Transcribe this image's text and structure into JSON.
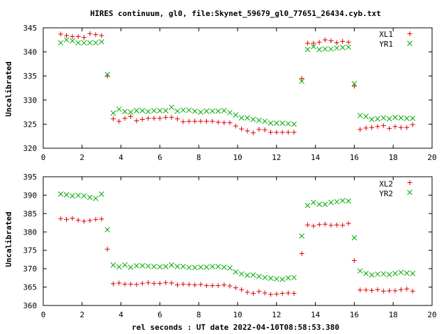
{
  "chart_data": {
    "type": "scatter",
    "title": "HIRES continuum, gl0, file:Skynet_59679_gl0_77651_26434.cyb.txt",
    "xlabel": "rel seconds : UT date 2022-04-10T08:58:53.380",
    "colors": {
      "red": "#dd0000",
      "green": "#00aa00"
    },
    "panels": [
      {
        "ylabel": "Uncalibrated",
        "xlim": [
          0,
          20
        ],
        "ylim": [
          320,
          345
        ],
        "xticks": [
          0,
          2,
          4,
          6,
          8,
          10,
          12,
          14,
          16,
          18,
          20
        ],
        "yticks": [
          320,
          325,
          330,
          335,
          340,
          345
        ],
        "legend_position": "top-right",
        "series": [
          {
            "name": "XL1",
            "marker": "plus",
            "color": "#dd0000",
            "x": [
              0.9,
              1.2,
              1.5,
              1.8,
              2.1,
              2.4,
              2.7,
              3.0,
              3.3,
              3.6,
              3.9,
              4.2,
              4.5,
              4.8,
              5.1,
              5.4,
              5.7,
              6.0,
              6.3,
              6.6,
              6.9,
              7.2,
              7.5,
              7.8,
              8.1,
              8.4,
              8.7,
              9.0,
              9.3,
              9.6,
              9.9,
              10.2,
              10.5,
              10.8,
              11.1,
              11.4,
              11.7,
              12.0,
              12.3,
              12.6,
              12.9,
              13.3,
              13.6,
              13.9,
              14.2,
              14.5,
              14.8,
              15.1,
              15.4,
              15.7,
              16.0,
              16.3,
              16.6,
              16.9,
              17.2,
              17.5,
              17.8,
              18.1,
              18.4,
              18.7,
              19.0
            ],
            "y": [
              343.7,
              343.4,
              343.2,
              343.2,
              343.0,
              343.8,
              343.6,
              343.4,
              335.0,
              326.1,
              325.6,
              326.2,
              326.6,
              325.7,
              326.0,
              326.2,
              326.2,
              326.2,
              326.4,
              326.4,
              326.1,
              325.5,
              325.6,
              325.6,
              325.6,
              325.6,
              325.6,
              325.4,
              325.3,
              325.3,
              324.6,
              324.0,
              323.6,
              323.2,
              323.9,
              323.8,
              323.3,
              323.3,
              323.3,
              323.3,
              323.3,
              334.5,
              341.8,
              341.8,
              342.0,
              342.5,
              342.3,
              341.9,
              342.2,
              342.0,
              332.9,
              323.9,
              324.2,
              324.3,
              324.5,
              324.7,
              324.1,
              324.5,
              324.3,
              324.3,
              324.9
            ]
          },
          {
            "name": "YR1",
            "marker": "cross",
            "color": "#00aa00",
            "x": [
              0.9,
              1.2,
              1.5,
              1.8,
              2.1,
              2.4,
              2.7,
              3.0,
              3.3,
              3.6,
              3.9,
              4.2,
              4.5,
              4.8,
              5.1,
              5.4,
              5.7,
              6.0,
              6.3,
              6.6,
              6.9,
              7.2,
              7.5,
              7.8,
              8.1,
              8.4,
              8.7,
              9.0,
              9.3,
              9.6,
              9.9,
              10.2,
              10.5,
              10.8,
              11.1,
              11.4,
              11.7,
              12.0,
              12.3,
              12.6,
              12.9,
              13.3,
              13.6,
              13.9,
              14.2,
              14.5,
              14.8,
              15.1,
              15.4,
              15.7,
              16.0,
              16.3,
              16.6,
              16.9,
              17.2,
              17.5,
              17.8,
              18.1,
              18.4,
              18.7,
              19.0
            ],
            "y": [
              341.9,
              342.5,
              342.3,
              341.9,
              341.9,
              341.9,
              341.9,
              342.1,
              335.3,
              327.3,
              328.1,
              327.6,
              327.5,
              327.8,
              327.8,
              327.6,
              327.8,
              327.8,
              327.8,
              328.5,
              327.7,
              327.9,
              327.9,
              327.7,
              327.5,
              327.7,
              327.7,
              327.7,
              327.8,
              327.4,
              326.9,
              326.3,
              326.3,
              326.0,
              325.8,
              325.6,
              325.2,
              325.2,
              325.2,
              325.1,
              325.0,
              333.9,
              340.5,
              341.1,
              340.5,
              340.6,
              340.6,
              340.8,
              340.9,
              341.0,
              333.4,
              326.8,
              326.6,
              326.0,
              326.1,
              326.3,
              326.1,
              326.4,
              326.3,
              326.2,
              326.2
            ]
          }
        ]
      },
      {
        "ylabel": "Uncalibrated",
        "xlim": [
          0,
          20
        ],
        "ylim": [
          360,
          395
        ],
        "xticks": [
          0,
          2,
          4,
          6,
          8,
          10,
          12,
          14,
          16,
          18,
          20
        ],
        "yticks": [
          360,
          365,
          370,
          375,
          380,
          385,
          390,
          395
        ],
        "legend_position": "top-right",
        "series": [
          {
            "name": "XL2",
            "marker": "plus",
            "color": "#dd0000",
            "x": [
              0.9,
              1.2,
              1.5,
              1.8,
              2.1,
              2.4,
              2.7,
              3.0,
              3.3,
              3.6,
              3.9,
              4.2,
              4.5,
              4.8,
              5.1,
              5.4,
              5.7,
              6.0,
              6.3,
              6.6,
              6.9,
              7.2,
              7.5,
              7.8,
              8.1,
              8.4,
              8.7,
              9.0,
              9.3,
              9.6,
              9.9,
              10.2,
              10.5,
              10.8,
              11.1,
              11.4,
              11.7,
              12.0,
              12.3,
              12.6,
              12.9,
              13.3,
              13.6,
              13.9,
              14.2,
              14.5,
              14.8,
              15.1,
              15.4,
              15.7,
              16.0,
              16.3,
              16.6,
              16.9,
              17.2,
              17.5,
              17.8,
              18.1,
              18.4,
              18.7,
              19.0
            ],
            "y": [
              383.6,
              383.4,
              383.7,
              383.2,
              382.9,
              383.1,
              383.4,
              383.5,
              375.3,
              365.9,
              366.1,
              365.8,
              365.8,
              365.7,
              366.0,
              366.2,
              366.0,
              366.0,
              366.2,
              366.1,
              365.6,
              365.8,
              365.7,
              365.6,
              365.7,
              365.4,
              365.4,
              365.4,
              365.6,
              365.3,
              364.8,
              364.3,
              363.6,
              363.3,
              363.8,
              363.4,
              363.0,
              363.1,
              363.3,
              363.4,
              363.3,
              374.1,
              381.9,
              381.6,
              382.0,
              382.1,
              381.8,
              381.9,
              381.8,
              382.3,
              372.2,
              364.2,
              364.2,
              364.1,
              364.3,
              363.9,
              364.0,
              364.0,
              364.3,
              364.5,
              363.9
            ]
          },
          {
            "name": "YR2",
            "marker": "cross",
            "color": "#00aa00",
            "x": [
              0.9,
              1.2,
              1.5,
              1.8,
              2.1,
              2.4,
              2.7,
              3.0,
              3.3,
              3.6,
              3.9,
              4.2,
              4.5,
              4.8,
              5.1,
              5.4,
              5.7,
              6.0,
              6.3,
              6.6,
              6.9,
              7.2,
              7.5,
              7.8,
              8.1,
              8.4,
              8.7,
              9.0,
              9.3,
              9.6,
              9.9,
              10.2,
              10.5,
              10.8,
              11.1,
              11.4,
              11.7,
              12.0,
              12.3,
              12.6,
              12.9,
              13.3,
              13.6,
              13.9,
              14.2,
              14.5,
              14.8,
              15.1,
              15.4,
              15.7,
              16.0,
              16.3,
              16.6,
              16.9,
              17.2,
              17.5,
              17.8,
              18.1,
              18.4,
              18.7,
              19.0
            ],
            "y": [
              390.3,
              390.1,
              389.8,
              389.9,
              389.8,
              389.4,
              389.1,
              390.3,
              380.6,
              371.0,
              370.5,
              371.0,
              370.4,
              370.8,
              370.8,
              370.7,
              370.6,
              370.5,
              370.6,
              371.0,
              370.6,
              370.6,
              370.3,
              370.3,
              370.4,
              370.4,
              370.6,
              370.6,
              370.4,
              370.2,
              369.1,
              368.6,
              368.2,
              368.3,
              367.9,
              367.6,
              367.4,
              367.2,
              367.1,
              367.5,
              367.6,
              378.9,
              387.2,
              388.0,
              387.5,
              387.5,
              388.0,
              388.2,
              388.5,
              388.4,
              378.4,
              369.4,
              368.7,
              368.3,
              368.5,
              368.6,
              368.4,
              368.7,
              369.0,
              368.8,
              368.7
            ]
          }
        ]
      }
    ]
  }
}
